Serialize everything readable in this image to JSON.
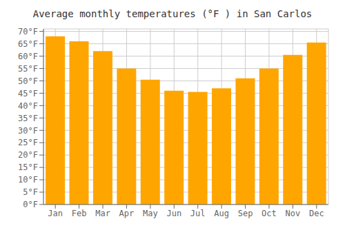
{
  "chart_data": {
    "type": "bar",
    "title": "Average monthly temperatures (°F ) in San Carlos",
    "categories": [
      "Jan",
      "Feb",
      "Mar",
      "Apr",
      "May",
      "Jun",
      "Jul",
      "Aug",
      "Sep",
      "Oct",
      "Nov",
      "Dec"
    ],
    "values": [
      68,
      66,
      62,
      55,
      50.5,
      46,
      45.5,
      47,
      51,
      55,
      60.5,
      65.5
    ],
    "color": "#FFA500",
    "ylim": [
      0,
      71
    ],
    "yticks": [
      {
        "value": 0,
        "label": "0°F"
      },
      {
        "value": 5,
        "label": "5°F"
      },
      {
        "value": 10,
        "label": "10°F"
      },
      {
        "value": 15,
        "label": "15°F"
      },
      {
        "value": 20,
        "label": "20°F"
      },
      {
        "value": 25,
        "label": "25°F"
      },
      {
        "value": 30,
        "label": "30°F"
      },
      {
        "value": 35,
        "label": "35°F"
      },
      {
        "value": 40,
        "label": "40°F"
      },
      {
        "value": 45,
        "label": "45°F"
      },
      {
        "value": 50,
        "label": "50°F"
      },
      {
        "value": 55,
        "label": "55°F"
      },
      {
        "value": 60,
        "label": "60°F"
      },
      {
        "value": 65,
        "label": "65°F"
      },
      {
        "value": 70,
        "label": "70°F"
      }
    ],
    "grid": true
  }
}
